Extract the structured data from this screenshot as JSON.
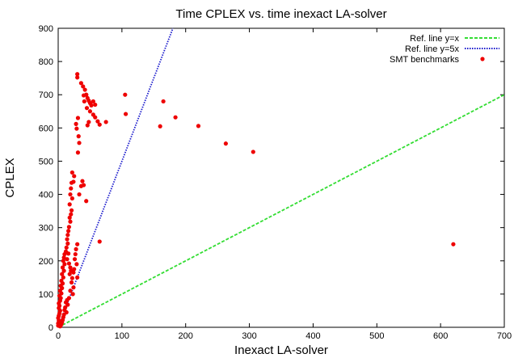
{
  "chart_data": {
    "type": "scatter",
    "title": "Time CPLEX vs. time inexact LA-solver",
    "xlabel": "Inexact LA-solver",
    "ylabel": "CPLEX",
    "xlim": [
      0,
      700
    ],
    "ylim": [
      0,
      900
    ],
    "xticks": [
      0,
      100,
      200,
      300,
      400,
      500,
      600,
      700
    ],
    "yticks": [
      0,
      100,
      200,
      300,
      400,
      500,
      600,
      700,
      800,
      900
    ],
    "grid": false,
    "legend_position": "top-right",
    "lines": [
      {
        "name": "Ref. line y=x",
        "slope": 1,
        "color": "#33dd33",
        "dash": "dashed"
      },
      {
        "name": "Ref. line y=5x",
        "slope": 5,
        "color": "#1a1acc",
        "dash": "dotted"
      }
    ],
    "series": [
      {
        "name": "SMT benchmarks",
        "color": "#ee0000",
        "points": [
          [
            30,
            762
          ],
          [
            30,
            752
          ],
          [
            36,
            735
          ],
          [
            39,
            725
          ],
          [
            42,
            715
          ],
          [
            44,
            700
          ],
          [
            40,
            698
          ],
          [
            46,
            690
          ],
          [
            48,
            682
          ],
          [
            50,
            675
          ],
          [
            52,
            668
          ],
          [
            55,
            680
          ],
          [
            58,
            670
          ],
          [
            45,
            660
          ],
          [
            50,
            650
          ],
          [
            55,
            640
          ],
          [
            58,
            632
          ],
          [
            62,
            620
          ],
          [
            65,
            610
          ],
          [
            75,
            618
          ],
          [
            48,
            618
          ],
          [
            46,
            608
          ],
          [
            44,
            700
          ],
          [
            41,
            680
          ],
          [
            105,
            700
          ],
          [
            106,
            642
          ],
          [
            165,
            680
          ],
          [
            160,
            605
          ],
          [
            184,
            632
          ],
          [
            220,
            606
          ],
          [
            263,
            553
          ],
          [
            306,
            528
          ],
          [
            620,
            250
          ],
          [
            65,
            258
          ],
          [
            28,
            612
          ],
          [
            31,
            630
          ],
          [
            29,
            598
          ],
          [
            32,
            575
          ],
          [
            33,
            555
          ],
          [
            31,
            526
          ],
          [
            38,
            440
          ],
          [
            36,
            425
          ],
          [
            33,
            400
          ],
          [
            40,
            428
          ],
          [
            44,
            380
          ],
          [
            22,
            466
          ],
          [
            25,
            455
          ],
          [
            24,
            438
          ],
          [
            21,
            435
          ],
          [
            20,
            418
          ],
          [
            19,
            400
          ],
          [
            22,
            388
          ],
          [
            18,
            370
          ],
          [
            21,
            352
          ],
          [
            20,
            340
          ],
          [
            18,
            330
          ],
          [
            19,
            318
          ],
          [
            17,
            302
          ],
          [
            16,
            290
          ],
          [
            15,
            278
          ],
          [
            14,
            265
          ],
          [
            15,
            252
          ],
          [
            13,
            240
          ],
          [
            12,
            228
          ],
          [
            10,
            220
          ],
          [
            9,
            210
          ],
          [
            8,
            200
          ],
          [
            10,
            190
          ],
          [
            7,
            180
          ],
          [
            9,
            170
          ],
          [
            6,
            160
          ],
          [
            8,
            150
          ],
          [
            5,
            140
          ],
          [
            7,
            132
          ],
          [
            4,
            125
          ],
          [
            6,
            118
          ],
          [
            3,
            110
          ],
          [
            5,
            102
          ],
          [
            2,
            95
          ],
          [
            4,
            88
          ],
          [
            3,
            80
          ],
          [
            1,
            72
          ],
          [
            2,
            65
          ],
          [
            1,
            58
          ],
          [
            3,
            50
          ],
          [
            2,
            42
          ],
          [
            1,
            35
          ],
          [
            0,
            28
          ],
          [
            1,
            20
          ],
          [
            0,
            12
          ],
          [
            0,
            5
          ],
          [
            16,
            222
          ],
          [
            14,
            205
          ],
          [
            17,
            192
          ],
          [
            19,
            180
          ],
          [
            20,
            170
          ],
          [
            18,
            160
          ],
          [
            22,
            148
          ],
          [
            21,
            135
          ],
          [
            24,
            120
          ],
          [
            19,
            110
          ],
          [
            23,
            100
          ],
          [
            30,
            250
          ],
          [
            28,
            235
          ],
          [
            27,
            220
          ],
          [
            26,
            205
          ],
          [
            29,
            190
          ],
          [
            25,
            175
          ],
          [
            24,
            165
          ],
          [
            30,
            150
          ],
          [
            17,
            88
          ],
          [
            14,
            82
          ],
          [
            12,
            75
          ],
          [
            15,
            68
          ],
          [
            11,
            60
          ],
          [
            10,
            52
          ],
          [
            13,
            45
          ],
          [
            9,
            38
          ],
          [
            8,
            30
          ],
          [
            7,
            22
          ],
          [
            6,
            15
          ],
          [
            5,
            10
          ],
          [
            4,
            6
          ],
          [
            3,
            3
          ]
        ]
      }
    ]
  }
}
